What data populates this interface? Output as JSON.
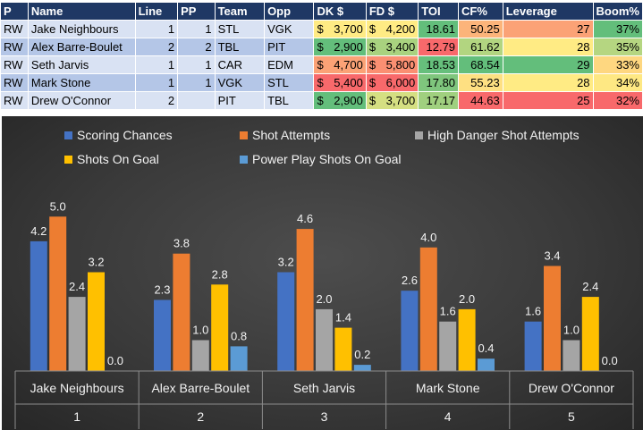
{
  "table": {
    "headers": [
      "P",
      "Name",
      "Line",
      "PP",
      "Team",
      "Opp",
      "DK $",
      "FD $",
      "TOI",
      "CF%",
      "Leverage",
      "Boom%"
    ],
    "rows": [
      {
        "pos": "RW",
        "name": "Jake Neighbours",
        "line": "1",
        "pp": "1",
        "team": "STL",
        "opp": "VGK",
        "dk": "3,700",
        "fd": "4,200",
        "toi": "18.61",
        "cf": "50.25",
        "lev": "27",
        "boom": "37%"
      },
      {
        "pos": "RW",
        "name": "Alex Barre-Boulet",
        "line": "2",
        "pp": "2",
        "team": "TBL",
        "opp": "PIT",
        "dk": "2,900",
        "fd": "3,400",
        "toi": "12.79",
        "cf": "61.62",
        "lev": "28",
        "boom": "35%"
      },
      {
        "pos": "RW",
        "name": "Seth Jarvis",
        "line": "1",
        "pp": "1",
        "team": "CAR",
        "opp": "EDM",
        "dk": "4,700",
        "fd": "5,800",
        "toi": "18.53",
        "cf": "68.54",
        "lev": "29",
        "boom": "33%"
      },
      {
        "pos": "RW",
        "name": "Mark Stone",
        "line": "1",
        "pp": "1",
        "team": "VGK",
        "opp": "STL",
        "dk": "5,400",
        "fd": "6,000",
        "toi": "17.80",
        "cf": "55.23",
        "lev": "28",
        "boom": "34%"
      },
      {
        "pos": "RW",
        "name": "Drew O'Connor",
        "line": "2",
        "pp": "",
        "team": "PIT",
        "opp": "TBL",
        "dk": "2,900",
        "fd": "3,700",
        "toi": "17.17",
        "cf": "44.63",
        "lev": "25",
        "boom": "32%"
      }
    ],
    "currency_symbol": "$",
    "cell_colors": {
      "dk": [
        "#ffeb84",
        "#63be7b",
        "#fba276",
        "#f8696b",
        "#63be7b"
      ],
      "fd": [
        "#ffeb84",
        "#a9d27f",
        "#fa8f72",
        "#f8696b",
        "#d5df82"
      ],
      "toi": [
        "#63be7b",
        "#f8696b",
        "#66bf7c",
        "#7fc67d",
        "#a0d07f"
      ],
      "cf": [
        "#fcb47a",
        "#b2d580",
        "#63be7b",
        "#fee082",
        "#f8696b"
      ],
      "lev": [
        "#fba276",
        "#ffeb84",
        "#63be7b",
        "#ffeb84",
        "#f8696b"
      ],
      "boom": [
        "#63be7b",
        "#b5d681",
        "#fed780",
        "#fee883",
        "#f8696b"
      ]
    }
  },
  "chart_data": {
    "type": "bar",
    "categories": [
      "Jake Neighbours",
      "Alex Barre-Boulet",
      "Seth Jarvis",
      "Mark Stone",
      "Drew O'Connor"
    ],
    "category_groups": [
      "1",
      "2",
      "3",
      "4",
      "5"
    ],
    "series": [
      {
        "name": "Scoring Chances",
        "color": "#4472c4",
        "values": [
          4.2,
          2.3,
          3.2,
          2.6,
          1.6
        ]
      },
      {
        "name": "Shot Attempts",
        "color": "#ed7d31",
        "values": [
          5.0,
          3.8,
          4.6,
          4.0,
          3.4
        ]
      },
      {
        "name": "High Danger Shot Attempts",
        "color": "#a5a5a5",
        "values": [
          2.4,
          1.0,
          2.0,
          1.6,
          1.0
        ]
      },
      {
        "name": "Shots On Goal",
        "color": "#ffc000",
        "values": [
          3.2,
          2.8,
          1.4,
          2.0,
          2.4
        ]
      },
      {
        "name": "Power Play Shots On Goal",
        "color": "#5b9bd5",
        "values": [
          0.0,
          0.8,
          0.2,
          0.4,
          0.0
        ]
      }
    ],
    "value_format": "0.0",
    "ylim": [
      0,
      5.5
    ],
    "legend_position": "top",
    "grid": false
  }
}
